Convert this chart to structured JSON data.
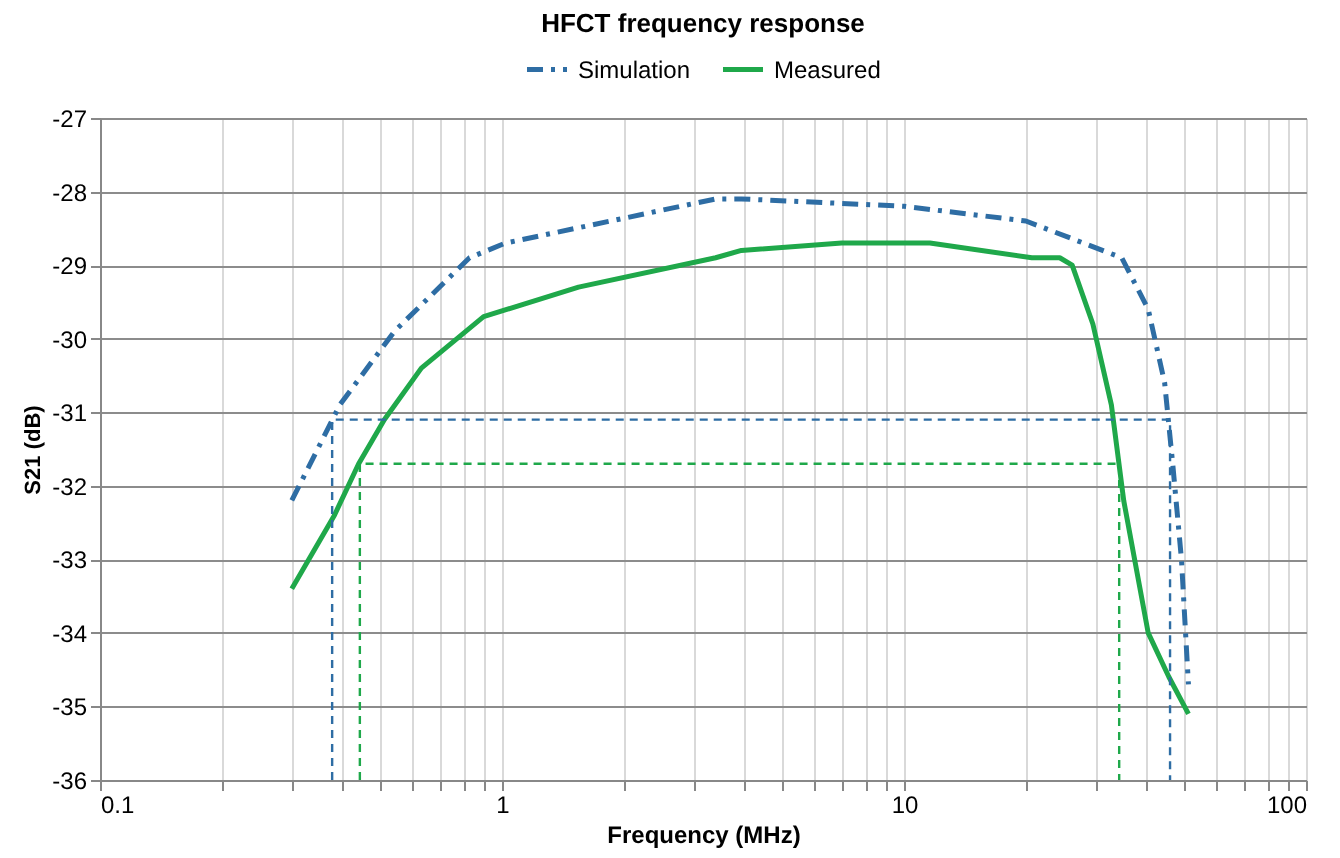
{
  "chart_data": {
    "type": "line",
    "title": "HFCT frequency response",
    "xlabel": "Frequency (MHz)",
    "ylabel": "S21 (dB)",
    "log": "x",
    "grid": true,
    "legend": "top",
    "marker": "none",
    "xlim": [
      0.1,
      100
    ],
    "ylim": [
      -36,
      -27
    ],
    "xticks": [
      0.1,
      {
        "value": 0.2,
        "label": null
      },
      {
        "value": 0.3,
        "label": null
      },
      {
        "value": 0.4,
        "label": null
      },
      {
        "value": 0.5,
        "label": null
      },
      {
        "value": 0.6,
        "label": null
      },
      {
        "value": 0.7,
        "label": null
      },
      {
        "value": 0.8,
        "label": null
      },
      {
        "value": 0.9,
        "label": null
      },
      1,
      {
        "value": 2,
        "label": null
      },
      {
        "value": 3,
        "label": null
      },
      {
        "value": 4,
        "label": null
      },
      {
        "value": 5,
        "label": null
      },
      {
        "value": 6,
        "label": null
      },
      {
        "value": 7,
        "label": null
      },
      {
        "value": 8,
        "label": null
      },
      {
        "value": 9,
        "label": null
      },
      10,
      {
        "value": 20,
        "label": null
      },
      {
        "value": 30,
        "label": null
      },
      {
        "value": 40,
        "label": null
      },
      {
        "value": 50,
        "label": null
      },
      {
        "value": 60,
        "label": null
      },
      {
        "value": 70,
        "label": null
      },
      {
        "value": 80,
        "label": null
      },
      {
        "value": 90,
        "label": null
      },
      100
    ],
    "yticks": [
      -36,
      -35,
      -34,
      -33,
      -32,
      -31,
      -30,
      -29,
      -28,
      -27
    ],
    "series": [
      {
        "name": "Simulation",
        "color": "#2e6da4",
        "line_style": "dashdot",
        "x": [
          0.3,
          0.395,
          0.54,
          0.83,
          1.02,
          2.28,
          3.4,
          3.94,
          10,
          20.1,
          34.8,
          40.5,
          44.5,
          46.6,
          49,
          51
        ],
        "values": [
          -32.2,
          -30.9,
          -29.9,
          -28.9,
          -28.7,
          -28.3,
          -28.1,
          -28.1,
          -28.2,
          -28.4,
          -28.9,
          -29.6,
          -30.6,
          -31.7,
          -33,
          -34.7
        ]
      },
      {
        "name": "Measured",
        "color": "#1fa84a",
        "line_style": "solid",
        "x": [
          0.3,
          0.383,
          0.44,
          0.51,
          0.63,
          0.9,
          1.55,
          3.4,
          3.94,
          7,
          11.6,
          20.8,
          24.4,
          26.2,
          29.5,
          32.8,
          35.2,
          40.5,
          45.6,
          51
        ],
        "values": [
          -33.4,
          -32.4,
          -31.7,
          -31.1,
          -30.4,
          -29.7,
          -29.3,
          -28.9,
          -28.8,
          -28.7,
          -28.7,
          -28.9,
          -28.9,
          -29,
          -29.8,
          -30.9,
          -32.2,
          -34,
          -34.6,
          -35.1
        ]
      },
      {
        "color": "#2e6da4",
        "line_style": "dashed",
        "x": [
          0.378,
          0.378,
          45.9,
          45.9
        ],
        "values": [
          -36,
          -31.1,
          -31.1,
          -36
        ]
      },
      {
        "color": "#1fa84a",
        "line_style": "dashed",
        "x": [
          0.443,
          0.443,
          34.3,
          34.3
        ],
        "values": [
          -36,
          -31.7,
          -31.7,
          -36
        ]
      }
    ]
  }
}
